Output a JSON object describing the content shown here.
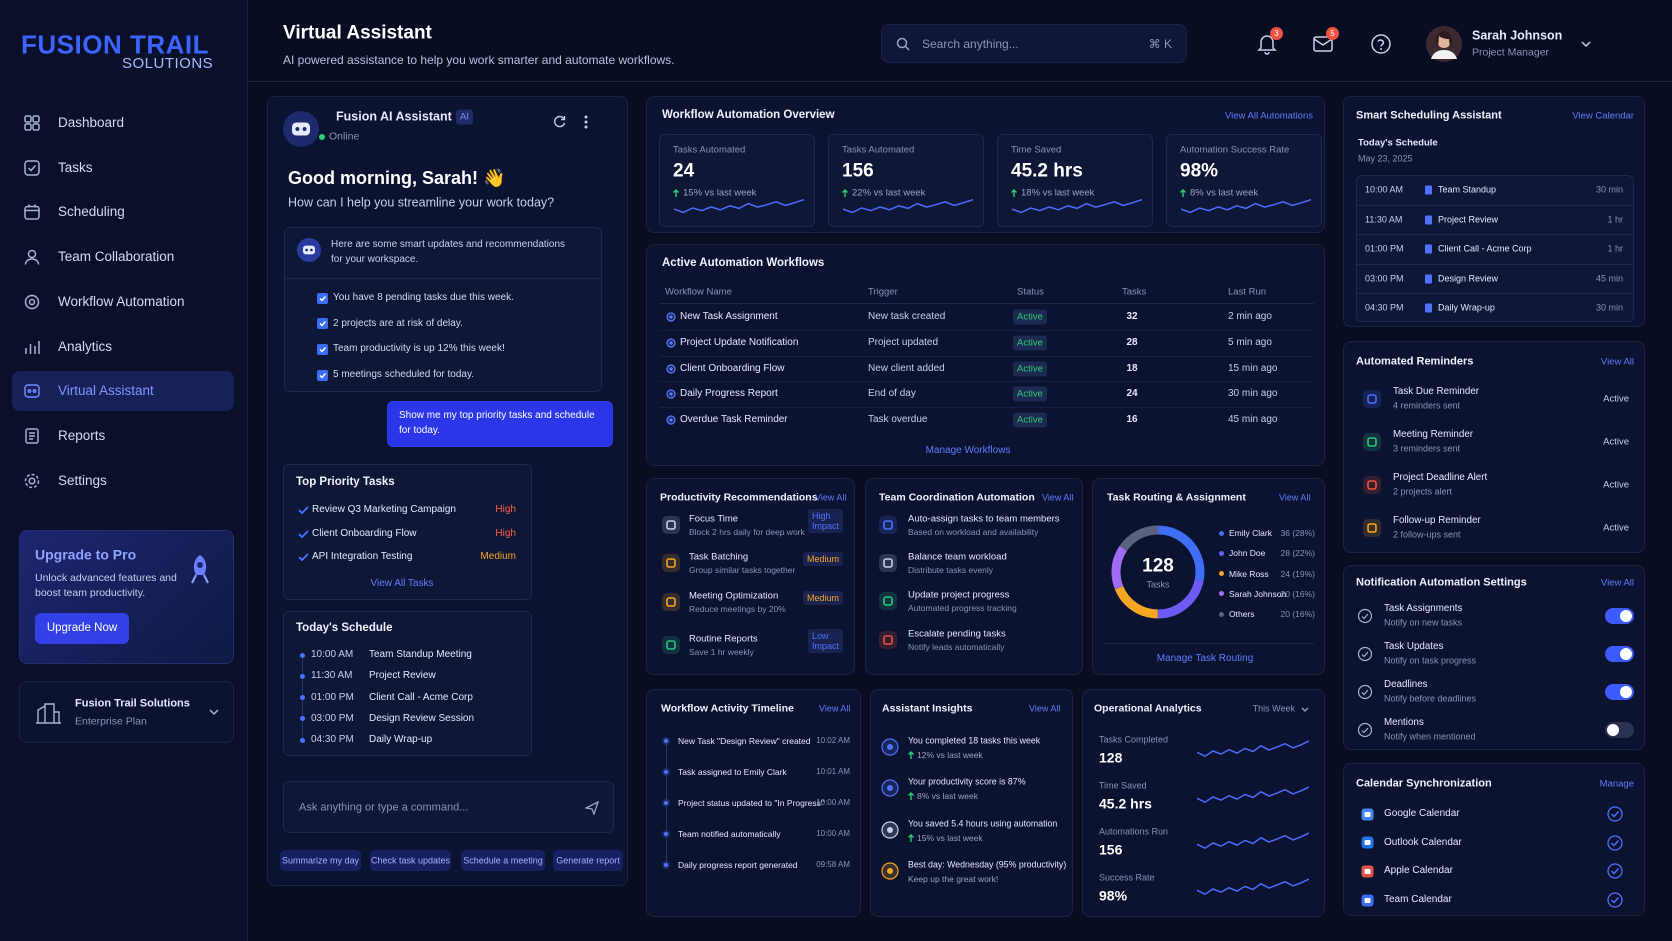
{
  "brand": {
    "name": "FUSION TRAIL",
    "tagline": "SOLUTIONS"
  },
  "nav": [
    {
      "label": "Dashboard"
    },
    {
      "label": "Tasks"
    },
    {
      "label": "Scheduling"
    },
    {
      "label": "Team Collaboration"
    },
    {
      "label": "Workflow Automation"
    },
    {
      "label": "Analytics"
    },
    {
      "label": "Virtual Assistant",
      "active": true
    },
    {
      "label": "Reports"
    },
    {
      "label": "Settings"
    }
  ],
  "upgrade": {
    "title": "Upgrade to Pro",
    "text": "Unlock advanced features and boost team productivity.",
    "button": "Upgrade Now"
  },
  "workspace": {
    "name": "Fusion Trail Solutions",
    "plan": "Enterprise Plan"
  },
  "header": {
    "title": "Virtual Assistant",
    "subtitle": "AI powered assistance to help you work smarter and automate workflows.",
    "search": "Search anything...",
    "shortcut": "⌘ K",
    "notifications": 3,
    "messages": 5,
    "user": {
      "name": "Sarah Johnson",
      "role": "Project Manager"
    }
  },
  "assistant": {
    "name": "Fusion AI Assistant",
    "badge": "AI",
    "status": "Online",
    "greeting": "Good morning, Sarah! 👋",
    "prompt": "How can I help you streamline your work today?",
    "intro": "Here are some smart updates and recommendations for your workspace.",
    "updates": [
      "You have 8 pending tasks due this week.",
      "2 projects are at risk of delay.",
      "Team productivity is up 12% this week!",
      "5 meetings scheduled for today."
    ],
    "user_message": "Show me my top priority tasks and schedule for today.",
    "priority": {
      "title": "Top Priority Tasks",
      "tasks": [
        {
          "name": "Review Q3 Marketing Campaign",
          "priority": "High",
          "color": "#ff5a4a"
        },
        {
          "name": "Client Onboarding Flow",
          "priority": "High",
          "color": "#ff5a4a"
        },
        {
          "name": "API Integration Testing",
          "priority": "Medium",
          "color": "#f5a623"
        }
      ],
      "link": "View All Tasks"
    },
    "schedule": {
      "title": "Today's Schedule",
      "items": [
        {
          "time": "10:00 AM",
          "event": "Team Standup Meeting"
        },
        {
          "time": "11:30 AM",
          "event": "Project Review"
        },
        {
          "time": "01:00 PM",
          "event": "Client Call - Acme Corp"
        },
        {
          "time": "03:00 PM",
          "event": "Design Review Session"
        },
        {
          "time": "04:30 PM",
          "event": "Daily Wrap-up"
        }
      ]
    },
    "input": "Ask anything or type a command...",
    "quick_actions": [
      "Summarize my day",
      "Check task updates",
      "Schedule a meeting",
      "Generate report"
    ]
  },
  "workflow_overview": {
    "title": "Workflow Automation Overview",
    "link": "View All Automations",
    "kpis": [
      {
        "label": "Tasks Automated",
        "value": "24",
        "change": "15% vs last week"
      },
      {
        "label": "Tasks Automated",
        "value": "156",
        "change": "22% vs last week"
      },
      {
        "label": "Time Saved",
        "value": "45.2 hrs",
        "change": "18% vs last week"
      },
      {
        "label": "Automation Success Rate",
        "value": "98%",
        "change": "8% vs last week"
      }
    ]
  },
  "active_workflows": {
    "title": "Active Automation Workflows",
    "columns": [
      "Workflow Name",
      "Trigger",
      "Status",
      "Tasks",
      "Last Run"
    ],
    "rows": [
      [
        "New Task Assignment",
        "New task created",
        "Active",
        32,
        "2 min ago"
      ],
      [
        "Project Update Notification",
        "Project updated",
        "Active",
        28,
        "5 min ago"
      ],
      [
        "Client Onboarding Flow",
        "New client added",
        "Active",
        18,
        "15 min ago"
      ],
      [
        "Daily Progress Report",
        "End of day",
        "Active",
        24,
        "30 min ago"
      ],
      [
        "Overdue Task Reminder",
        "Task overdue",
        "Active",
        16,
        "45 min ago"
      ]
    ],
    "link": "Manage Workflows"
  },
  "productivity": {
    "title": "Productivity Recommendations",
    "link": "View All",
    "items": [
      {
        "title": "Focus Time",
        "desc": "Block 2 hrs daily for deep work",
        "tag": "High Impact",
        "color": "#c9cfe8",
        "tag_color": "#4d72ff"
      },
      {
        "title": "Task Batching",
        "desc": "Group similar tasks together",
        "tag": "Medium",
        "color": "#f5a623",
        "tag_color": "#f5a623"
      },
      {
        "title": "Meeting Optimization",
        "desc": "Reduce meetings by 20%",
        "tag": "Medium",
        "color": "#f5a623",
        "tag_color": "#f5a623"
      },
      {
        "title": "Routine Reports",
        "desc": "Save 1 hr weekly",
        "tag": "Low Impact",
        "color": "#2ec27e",
        "tag_color": "#4d72ff"
      }
    ]
  },
  "team_coordination": {
    "title": "Team Coordination Automation",
    "link": "View All",
    "items": [
      {
        "title": "Auto-assign tasks to team members",
        "desc": "Based on workload and availability",
        "color": "#4d72ff"
      },
      {
        "title": "Balance team workload",
        "desc": "Distribute tasks evenly",
        "color": "#c9cfe8"
      },
      {
        "title": "Update project progress",
        "desc": "Automated progress tracking",
        "color": "#2ec27e"
      },
      {
        "title": "Escalate pending tasks",
        "desc": "Notify leads automatically",
        "color": "#f0523f"
      }
    ]
  },
  "task_routing": {
    "title": "Task Routing & Assignment",
    "link": "View All",
    "total": 128,
    "total_label": "Tasks",
    "items": [
      {
        "name": "Emily Clark",
        "count": 36,
        "label": "36 (28%)",
        "color": "#3f6df6"
      },
      {
        "name": "John Doe",
        "count": 28,
        "label": "28 (22%)",
        "color": "#6a5cf5"
      },
      {
        "name": "Mike Ross",
        "count": 24,
        "label": "24 (19%)",
        "color": "#f5a623"
      },
      {
        "name": "Sarah Johnson",
        "count": 20,
        "label": "20 (16%)",
        "color": "#a06bf5"
      },
      {
        "name": "Others",
        "count": 20,
        "label": "20 (16%)",
        "color": "#5b6280"
      }
    ],
    "footer": "Manage Task Routing"
  },
  "timeline": {
    "title": "Workflow Activity Timeline",
    "link": "View All",
    "items": [
      {
        "text": "New Task \"Design Review\" created",
        "time": "10:02 AM"
      },
      {
        "text": "Task assigned to Emily Clark",
        "time": "10:01 AM"
      },
      {
        "text": "Project status updated to \"In Progress\"",
        "time": "10:00 AM"
      },
      {
        "text": "Team notified automatically",
        "time": "10:00 AM"
      },
      {
        "text": "Daily progress report generated",
        "time": "09:58 AM"
      }
    ]
  },
  "insights": {
    "title": "Assistant Insights",
    "link": "View All",
    "items": [
      {
        "text": "You completed 18 tasks this week",
        "change": "12% vs last week",
        "up": true,
        "color": "#4d72ff"
      },
      {
        "text": "Your productivity score is 87%",
        "change": "8% vs last week",
        "up": true,
        "color": "#4d72ff"
      },
      {
        "text": "You saved 5.4 hours using automation",
        "change": "15% vs last week",
        "up": true,
        "color": "#c9cfe8"
      },
      {
        "text": "Best day: Wednesday (95% productivity)",
        "change": "Keep up the great work!",
        "up": false,
        "color": "#f5a623"
      }
    ]
  },
  "operational": {
    "title": "Operational Analytics",
    "period": "This Week",
    "metrics": [
      {
        "label": "Tasks Completed",
        "value": "128"
      },
      {
        "label": "Time Saved",
        "value": "45.2 hrs"
      },
      {
        "label": "Automations Run",
        "value": "156"
      },
      {
        "label": "Success Rate",
        "value": "98%"
      }
    ]
  },
  "scheduling": {
    "title": "Smart Scheduling Assistant",
    "link": "View Calendar",
    "subtitle": "Today's Schedule",
    "date": "May 23, 2025",
    "items": [
      {
        "time": "10:00 AM",
        "event": "Team Standup",
        "duration": "30 min"
      },
      {
        "time": "11:30 AM",
        "event": "Project Review",
        "duration": "1 hr"
      },
      {
        "time": "01:00 PM",
        "event": "Client Call - Acme Corp",
        "duration": "1 hr"
      },
      {
        "time": "03:00 PM",
        "event": "Design Review",
        "duration": "45 min"
      },
      {
        "time": "04:30 PM",
        "event": "Daily Wrap-up",
        "duration": "30 min"
      }
    ]
  },
  "reminders": {
    "title": "Automated Reminders",
    "link": "View All",
    "items": [
      {
        "title": "Task Due Reminder",
        "desc": "4 reminders sent",
        "status": "Active",
        "color": "#4a6cf7"
      },
      {
        "title": "Meeting Reminder",
        "desc": "3 reminders sent",
        "status": "Active",
        "color": "#2ec27e"
      },
      {
        "title": "Project Deadline Alert",
        "desc": "2 projects alert",
        "status": "Active",
        "color": "#f0523f"
      },
      {
        "title": "Follow-up Reminder",
        "desc": "2 follow-ups sent",
        "status": "Active",
        "color": "#f5a623"
      }
    ]
  },
  "notification_settings": {
    "title": "Notification Automation Settings",
    "link": "View All",
    "items": [
      {
        "title": "Task Assignments",
        "desc": "Notify on new tasks",
        "on": true
      },
      {
        "title": "Task Updates",
        "desc": "Notify on task progress",
        "on": true
      },
      {
        "title": "Deadlines",
        "desc": "Notify before deadlines",
        "on": true
      },
      {
        "title": "Mentions",
        "desc": "Notify when mentioned",
        "on": false
      }
    ]
  },
  "calendar_sync": {
    "title": "Calendar Synchronization",
    "link": "Manage",
    "items": [
      {
        "name": "Google Calendar",
        "color": "#4285f4"
      },
      {
        "name": "Outlook Calendar",
        "color": "#1e73e8"
      },
      {
        "name": "Apple Calendar",
        "color": "#e0524a"
      },
      {
        "name": "Team Calendar",
        "color": "#3b6cf6"
      }
    ]
  }
}
